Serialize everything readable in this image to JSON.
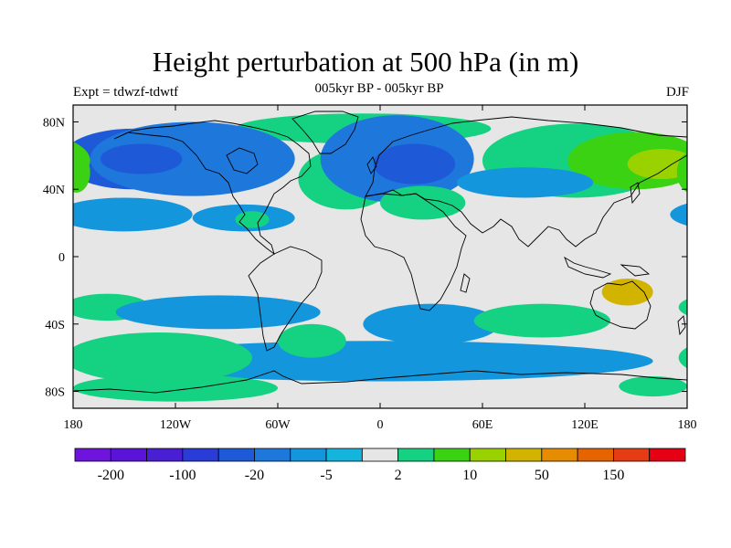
{
  "header": {
    "title": "Height perturbation at 500 hPa (in m)",
    "subtitle": "005kyr BP - 005kyr BP",
    "left_label": "Expt = tdwzf-tdwtf",
    "right_label": "DJF"
  },
  "map": {
    "lon_ticks": [
      "180",
      "120W",
      "60W",
      "0",
      "60E",
      "120E",
      "180"
    ],
    "lat_ticks": [
      "80N",
      "40N",
      "0",
      "40S",
      "80S"
    ],
    "background_color": "#e6e6e6",
    "features": [
      {
        "name": "arctic-high-band",
        "level": 9,
        "cx": -10,
        "cy": 76,
        "rx": 75,
        "ry": 9
      },
      {
        "name": "nw-canada-low",
        "level": 4,
        "cx": -145,
        "cy": 58,
        "rx": 42,
        "ry": 18
      },
      {
        "name": "north-america-low",
        "level": 5,
        "cx": -110,
        "cy": 58,
        "rx": 60,
        "ry": 22
      },
      {
        "name": "north-america-deep-low",
        "level": 4,
        "cx": -140,
        "cy": 58,
        "rx": 24,
        "ry": 9
      },
      {
        "name": "atlantic-high",
        "level": 9,
        "cx": -20,
        "cy": 46,
        "rx": 28,
        "ry": 18
      },
      {
        "name": "europe-low",
        "level": 5,
        "cx": 10,
        "cy": 58,
        "rx": 45,
        "ry": 26
      },
      {
        "name": "europe-deep-low",
        "level": 4,
        "cx": 20,
        "cy": 55,
        "rx": 24,
        "ry": 12
      },
      {
        "name": "siberia-high",
        "level": 9,
        "cx": 115,
        "cy": 57,
        "rx": 55,
        "ry": 22
      },
      {
        "name": "pacific-high",
        "level": 10,
        "cx": 150,
        "cy": 57,
        "rx": 40,
        "ry": 17
      },
      {
        "name": "pacific-strong-high",
        "level": 11,
        "cx": 165,
        "cy": 55,
        "rx": 20,
        "ry": 9
      },
      {
        "name": "dateline-west-high",
        "level": 10,
        "cx": -178,
        "cy": 50,
        "rx": 8,
        "ry": 12
      },
      {
        "name": "east-asia-low",
        "level": 6,
        "cx": 85,
        "cy": 44,
        "rx": 40,
        "ry": 9
      },
      {
        "name": "north-pacific-low",
        "level": 6,
        "cx": -150,
        "cy": 25,
        "rx": 40,
        "ry": 10
      },
      {
        "name": "subtropical-atlantic-low",
        "level": 6,
        "cx": -80,
        "cy": 23,
        "rx": 30,
        "ry": 8
      },
      {
        "name": "caribbean-high",
        "level": 9,
        "cx": -75,
        "cy": 22,
        "rx": 10,
        "ry": 5
      },
      {
        "name": "north-africa-high",
        "level": 9,
        "cx": 25,
        "cy": 32,
        "rx": 25,
        "ry": 10
      },
      {
        "name": "south-pacific-high",
        "level": 9,
        "cx": -160,
        "cy": -30,
        "rx": 25,
        "ry": 8
      },
      {
        "name": "south-america-low",
        "level": 6,
        "cx": -95,
        "cy": -33,
        "rx": 60,
        "ry": 10
      },
      {
        "name": "indian-ocean-low",
        "level": 6,
        "cx": 30,
        "cy": -40,
        "rx": 40,
        "ry": 12
      },
      {
        "name": "south-indian-high",
        "level": 9,
        "cx": 95,
        "cy": -38,
        "rx": 40,
        "ry": 10
      },
      {
        "name": "australia-strong-high",
        "level": 12,
        "cx": 145,
        "cy": -21,
        "rx": 15,
        "ry": 8
      },
      {
        "name": "southern-ocean-low",
        "level": 6,
        "cx": 0,
        "cy": -62,
        "rx": 160,
        "ry": 12
      },
      {
        "name": "southern-ocean-high",
        "level": 9,
        "cx": -130,
        "cy": -60,
        "rx": 55,
        "ry": 15
      },
      {
        "name": "south-atlantic-high",
        "level": 9,
        "cx": -40,
        "cy": -50,
        "rx": 20,
        "ry": 10
      },
      {
        "name": "antarctic-high",
        "level": 9,
        "cx": -120,
        "cy": -78,
        "rx": 60,
        "ry": 8
      },
      {
        "name": "antarctic-east-high",
        "level": 9,
        "cx": 160,
        "cy": -77,
        "rx": 20,
        "ry": 6
      }
    ]
  },
  "colorbar": {
    "colors": [
      "#6e14dc",
      "#5a14d7",
      "#4a1ed2",
      "#2a3cd7",
      "#1e5ad7",
      "#1e78dc",
      "#1496dc",
      "#14b4dc",
      "#e6e6e6",
      "#14d282",
      "#3cd214",
      "#9ad200",
      "#d2b400",
      "#e68c00",
      "#e66400",
      "#e63c14",
      "#e60014"
    ],
    "labels": [
      "-200",
      "-100",
      "-20",
      "-5",
      "2",
      "10",
      "50",
      "150"
    ],
    "label_boundaries": [
      1,
      3,
      5,
      7,
      9,
      11,
      13,
      15
    ]
  }
}
